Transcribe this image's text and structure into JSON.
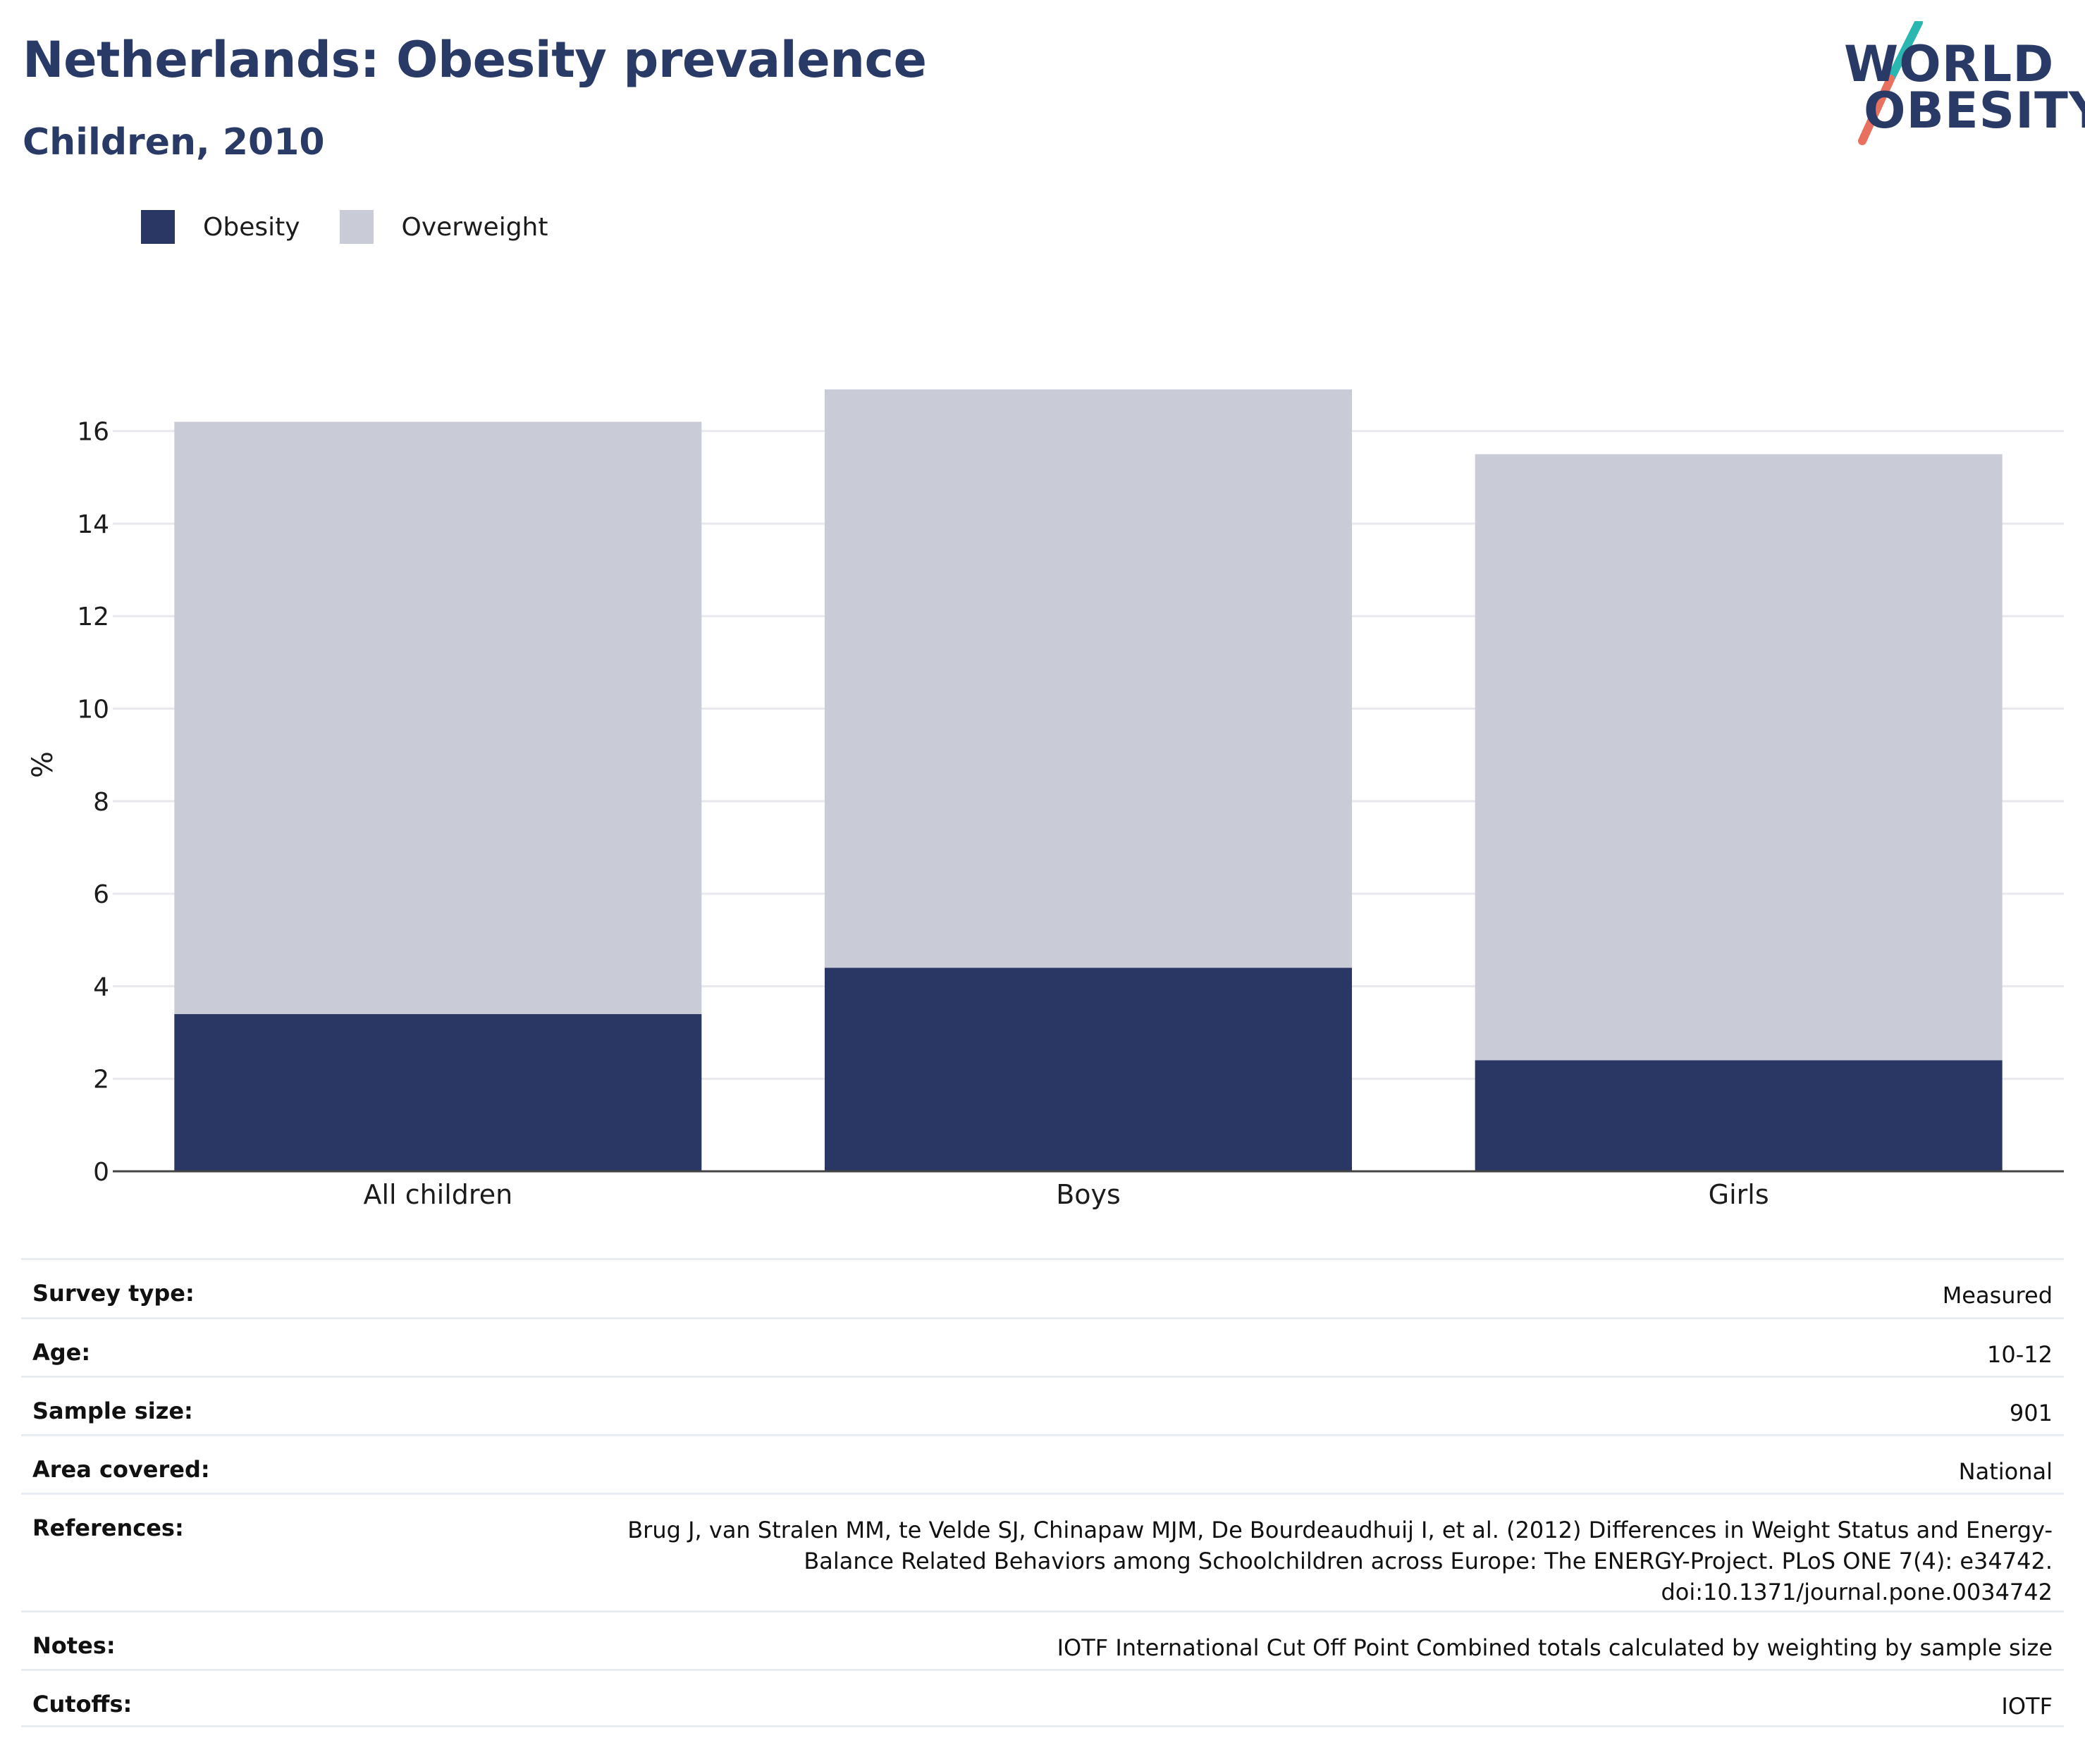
{
  "header": {
    "title": "Netherlands: Obesity prevalence",
    "subtitle": "Children, 2010"
  },
  "logo": {
    "line1": "WORLD",
    "line2": "OBESITY",
    "accent_colors": [
      "#2ab7b2",
      "#e8705e"
    ]
  },
  "legend": [
    {
      "label": "Obesity",
      "color": "#2a3664"
    },
    {
      "label": "Overweight",
      "color": "#c9cbd7"
    }
  ],
  "chart_data": {
    "type": "bar",
    "stacked": true,
    "categories": [
      "All children",
      "Boys",
      "Girls"
    ],
    "series": [
      {
        "name": "Obesity",
        "values": [
          3.4,
          4.4,
          2.4
        ],
        "color": "#2a3664"
      },
      {
        "name": "Overweight",
        "values": [
          12.8,
          12.5,
          13.1
        ],
        "color": "#c9cbd7"
      }
    ],
    "ylabel": "%",
    "xlabel": "",
    "ylim": [
      0,
      17
    ],
    "yticks": [
      0,
      2,
      4,
      6,
      8,
      10,
      12,
      14,
      16
    ],
    "grid": true,
    "legend_position": "top-left"
  },
  "info": [
    {
      "key": "Survey type:",
      "value": "Measured"
    },
    {
      "key": "Age:",
      "value": "10-12"
    },
    {
      "key": "Sample size:",
      "value": "901"
    },
    {
      "key": "Area covered:",
      "value": "National"
    },
    {
      "key": "References:",
      "value": "Brug J, van Stralen MM, te Velde SJ, Chinapaw MJM, De Bourdeaudhuij I, et al. (2012) Differences in Weight Status and Energy-Balance Related Behaviors among Schoolchildren across Europe: The ENERGY-Project. PLoS ONE 7(4): e34742. doi:10.1371/journal.pone.0034742"
    },
    {
      "key": "Notes:",
      "value": "IOTF International Cut Off Point Combined totals calculated by weighting by sample size"
    },
    {
      "key": "Cutoffs:",
      "value": "IOTF"
    }
  ]
}
